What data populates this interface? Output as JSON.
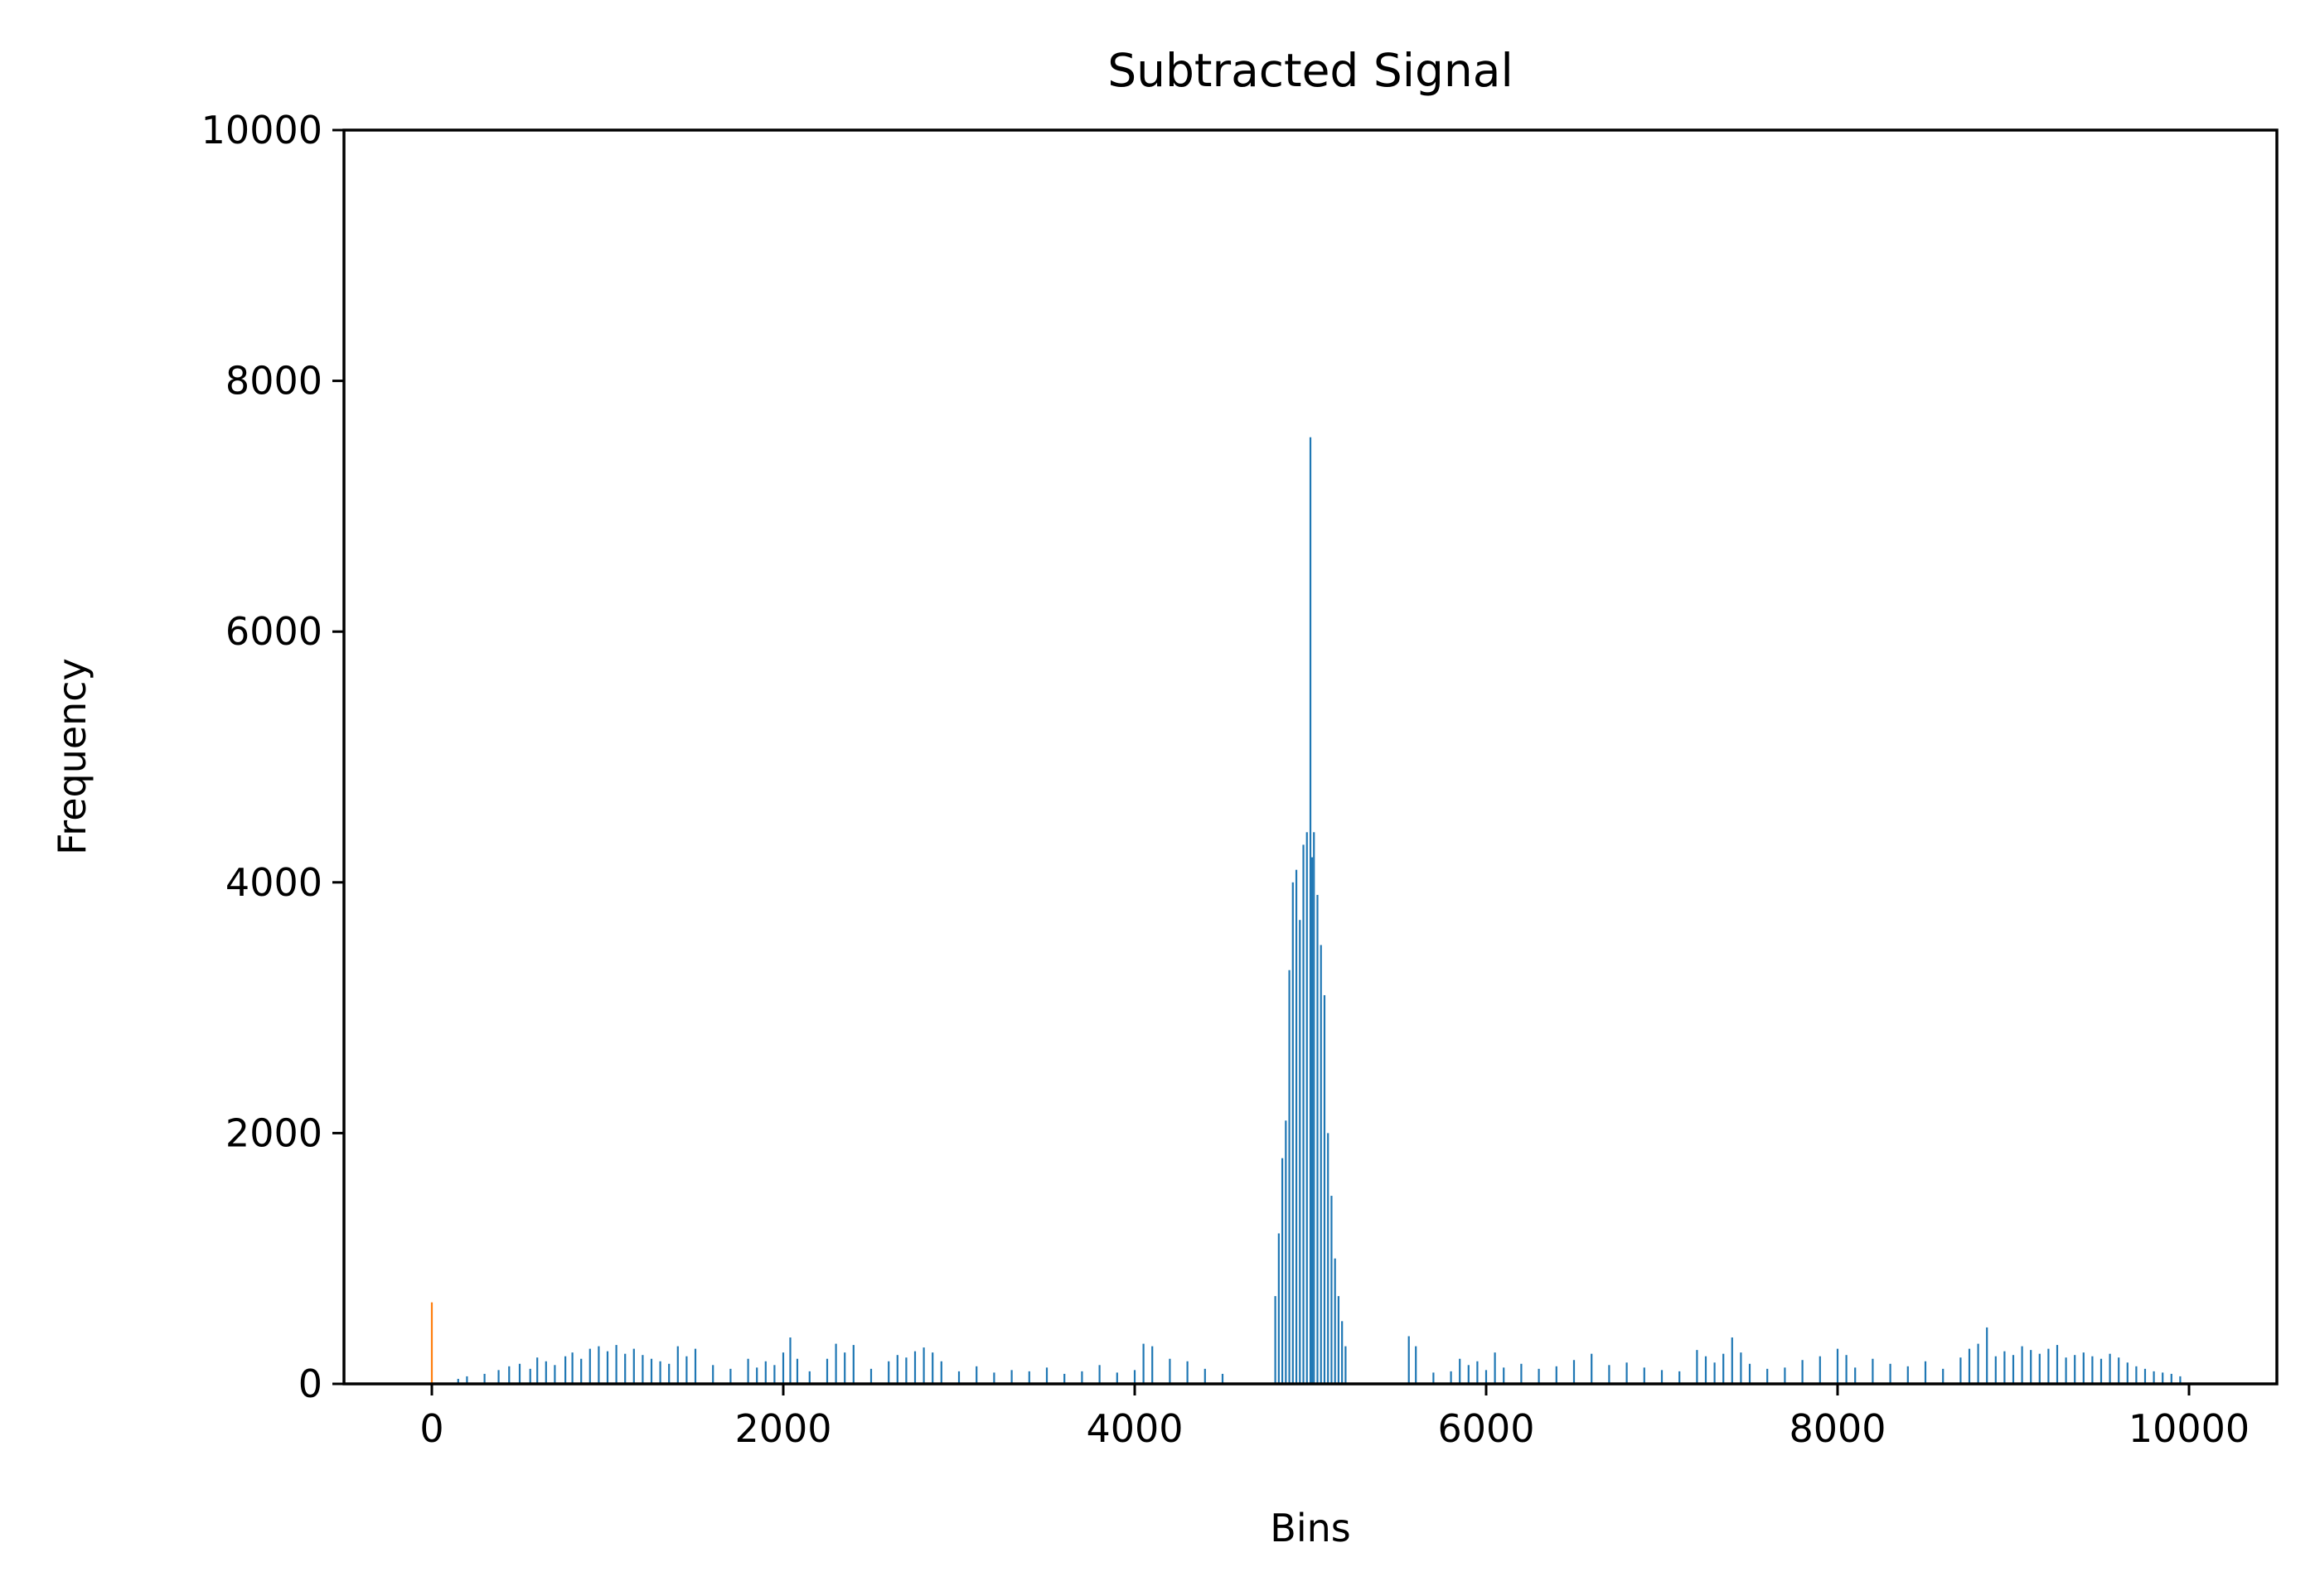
{
  "chart_data": {
    "type": "bar",
    "title": "Subtracted Signal",
    "xlabel": "Bins",
    "ylabel": "Frequency",
    "xlim": [
      -500,
      10500
    ],
    "ylim": [
      0,
      10000
    ],
    "xticks": [
      0,
      2000,
      4000,
      6000,
      8000,
      10000
    ],
    "yticks": [
      0,
      2000,
      4000,
      6000,
      8000,
      10000
    ],
    "grid": false,
    "legend": "none",
    "series": [
      {
        "color": "#1f77b4",
        "bars": [
          [
            150,
            40
          ],
          [
            200,
            60
          ],
          [
            300,
            80
          ],
          [
            380,
            110
          ],
          [
            440,
            140
          ],
          [
            500,
            160
          ],
          [
            560,
            120
          ],
          [
            600,
            210
          ],
          [
            650,
            180
          ],
          [
            700,
            150
          ],
          [
            760,
            220
          ],
          [
            800,
            250
          ],
          [
            850,
            200
          ],
          [
            900,
            280
          ],
          [
            950,
            300
          ],
          [
            1000,
            260
          ],
          [
            1050,
            310
          ],
          [
            1100,
            240
          ],
          [
            1150,
            280
          ],
          [
            1200,
            230
          ],
          [
            1250,
            200
          ],
          [
            1300,
            180
          ],
          [
            1350,
            160
          ],
          [
            1400,
            300
          ],
          [
            1450,
            220
          ],
          [
            1500,
            280
          ],
          [
            1600,
            150
          ],
          [
            1700,
            120
          ],
          [
            1800,
            200
          ],
          [
            1850,
            130
          ],
          [
            1900,
            180
          ],
          [
            1950,
            150
          ],
          [
            2000,
            250
          ],
          [
            2040,
            370
          ],
          [
            2080,
            200
          ],
          [
            2150,
            100
          ],
          [
            2250,
            200
          ],
          [
            2300,
            320
          ],
          [
            2350,
            250
          ],
          [
            2400,
            310
          ],
          [
            2500,
            120
          ],
          [
            2600,
            180
          ],
          [
            2650,
            230
          ],
          [
            2700,
            210
          ],
          [
            2750,
            260
          ],
          [
            2800,
            290
          ],
          [
            2850,
            250
          ],
          [
            2900,
            180
          ],
          [
            3000,
            100
          ],
          [
            3100,
            140
          ],
          [
            3200,
            90
          ],
          [
            3300,
            110
          ],
          [
            3400,
            100
          ],
          [
            3500,
            130
          ],
          [
            3600,
            80
          ],
          [
            3700,
            100
          ],
          [
            3800,
            150
          ],
          [
            3900,
            90
          ],
          [
            4000,
            110
          ],
          [
            4050,
            320
          ],
          [
            4100,
            300
          ],
          [
            4200,
            200
          ],
          [
            4300,
            180
          ],
          [
            4400,
            120
          ],
          [
            4500,
            80
          ],
          [
            4800,
            700
          ],
          [
            4820,
            1200
          ],
          [
            4840,
            1800
          ],
          [
            4860,
            2100
          ],
          [
            4880,
            3300
          ],
          [
            4900,
            4000
          ],
          [
            4920,
            4100
          ],
          [
            4940,
            3700
          ],
          [
            4960,
            4300
          ],
          [
            4980,
            4400
          ],
          [
            5000,
            7550
          ],
          [
            5010,
            4200
          ],
          [
            5020,
            4400
          ],
          [
            5040,
            3900
          ],
          [
            5060,
            3500
          ],
          [
            5080,
            3100
          ],
          [
            5100,
            2000
          ],
          [
            5120,
            1500
          ],
          [
            5140,
            1000
          ],
          [
            5160,
            700
          ],
          [
            5180,
            500
          ],
          [
            5200,
            300
          ],
          [
            5560,
            380
          ],
          [
            5600,
            300
          ],
          [
            5700,
            90
          ],
          [
            5800,
            100
          ],
          [
            5850,
            200
          ],
          [
            5900,
            150
          ],
          [
            5950,
            180
          ],
          [
            6000,
            110
          ],
          [
            6050,
            250
          ],
          [
            6100,
            130
          ],
          [
            6200,
            160
          ],
          [
            6300,
            120
          ],
          [
            6400,
            140
          ],
          [
            6500,
            190
          ],
          [
            6600,
            240
          ],
          [
            6700,
            150
          ],
          [
            6800,
            170
          ],
          [
            6900,
            130
          ],
          [
            7000,
            110
          ],
          [
            7100,
            100
          ],
          [
            7200,
            270
          ],
          [
            7250,
            220
          ],
          [
            7300,
            170
          ],
          [
            7350,
            240
          ],
          [
            7400,
            370
          ],
          [
            7450,
            250
          ],
          [
            7500,
            160
          ],
          [
            7600,
            120
          ],
          [
            7700,
            130
          ],
          [
            7800,
            190
          ],
          [
            7900,
            220
          ],
          [
            8000,
            280
          ],
          [
            8050,
            230
          ],
          [
            8100,
            130
          ],
          [
            8200,
            200
          ],
          [
            8300,
            160
          ],
          [
            8400,
            140
          ],
          [
            8500,
            180
          ],
          [
            8600,
            120
          ],
          [
            8700,
            210
          ],
          [
            8750,
            280
          ],
          [
            8800,
            320
          ],
          [
            8850,
            450
          ],
          [
            8900,
            220
          ],
          [
            8950,
            260
          ],
          [
            9000,
            230
          ],
          [
            9050,
            300
          ],
          [
            9100,
            270
          ],
          [
            9150,
            240
          ],
          [
            9200,
            280
          ],
          [
            9250,
            310
          ],
          [
            9300,
            210
          ],
          [
            9350,
            230
          ],
          [
            9400,
            250
          ],
          [
            9450,
            220
          ],
          [
            9500,
            200
          ],
          [
            9550,
            240
          ],
          [
            9600,
            210
          ],
          [
            9650,
            170
          ],
          [
            9700,
            140
          ],
          [
            9750,
            120
          ],
          [
            9800,
            100
          ],
          [
            9850,
            90
          ],
          [
            9900,
            80
          ],
          [
            9950,
            60
          ]
        ]
      },
      {
        "color": "#ff7f0e",
        "bars": [
          [
            0,
            650
          ]
        ]
      }
    ]
  }
}
